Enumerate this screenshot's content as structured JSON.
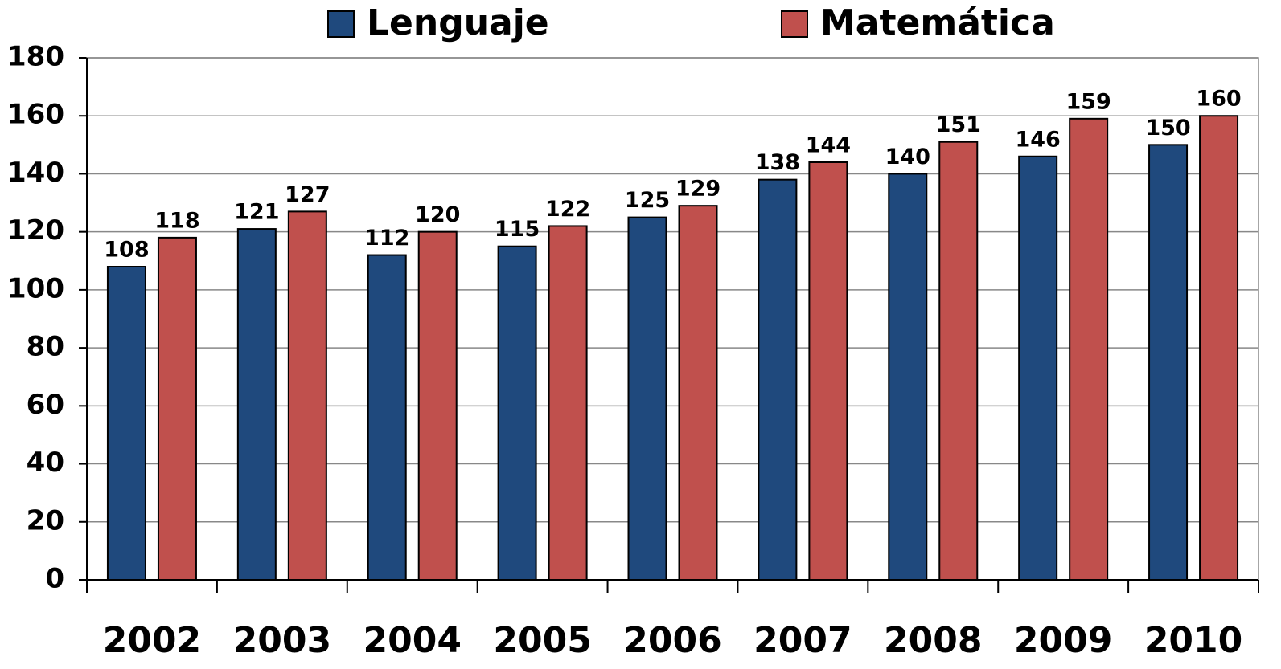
{
  "chart_data": {
    "type": "bar",
    "categories": [
      "2002",
      "2003",
      "2004",
      "2005",
      "2006",
      "2007",
      "2008",
      "2009",
      "2010"
    ],
    "series": [
      {
        "name": "Lenguaje",
        "color": "#1f497d",
        "values": [
          108,
          121,
          112,
          115,
          125,
          138,
          140,
          146,
          150
        ]
      },
      {
        "name": "Matemática",
        "color": "#c0504d",
        "values": [
          118,
          127,
          120,
          122,
          129,
          144,
          151,
          159,
          160
        ]
      }
    ],
    "ylim": [
      0,
      180
    ],
    "yticks": [
      0,
      20,
      40,
      60,
      80,
      100,
      120,
      140,
      160,
      180
    ],
    "grid": true,
    "legend": "top"
  }
}
